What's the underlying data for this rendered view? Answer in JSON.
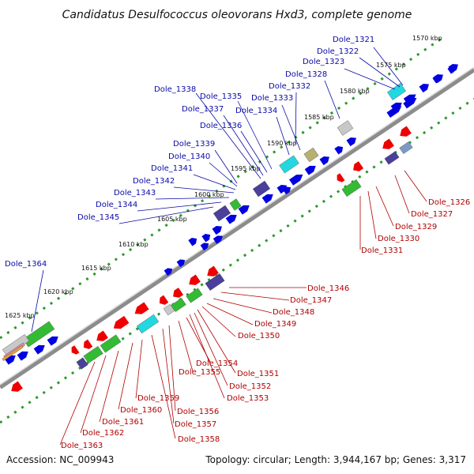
{
  "title": "Candidatus Desulfococcus oleovorans Hxd3, complete genome",
  "accession": "Accession: NC_009943",
  "summary": "Topology: circular; Length: 3,944,167 bp; Genes: 3,317",
  "colors": {
    "backbone": "#8c8c8c",
    "tick_dots": "#2a9a2a",
    "forward_gene": "#0000e0",
    "reverse_gene": "#ee0000",
    "blue_label": "#0a0aa8",
    "red_label": "#b00000",
    "cog_green": "#33bb33",
    "cog_cyan": "#22d8e0",
    "cog_purple": "#4a3f9a",
    "cog_gray": "#c8c8c8",
    "cog_khaki": "#b8b070",
    "cog_steel": "#7a9ac8"
  },
  "kbp_ticks": [
    "1570 kbp",
    "1575 kbp",
    "1580 kbp",
    "1585 kbp",
    "1590 kbp",
    "1595 kbp",
    "1600 kbp",
    "1605 kbp",
    "1610 kbp",
    "1615 kbp",
    "1620 kbp",
    "1625 kbp"
  ],
  "forward_labels": [
    "Dole_1321",
    "Dole_1322",
    "Dole_1323",
    "Dole_1328",
    "Dole_1332",
    "Dole_1333",
    "Dole_1334",
    "Dole_1335",
    "Dole_1336",
    "Dole_1337",
    "Dole_1338",
    "Dole_1339",
    "Dole_1340",
    "Dole_1341",
    "Dole_1342",
    "Dole_1343",
    "Dole_1344",
    "Dole_1345",
    "Dole_1364"
  ],
  "reverse_labels": [
    "Dole_1326",
    "Dole_1327",
    "Dole_1329",
    "Dole_1330",
    "Dole_1331",
    "Dole_1346",
    "Dole_1347",
    "Dole_1348",
    "Dole_1349",
    "Dole_1350",
    "Dole_1351",
    "Dole_1352",
    "Dole_1353",
    "Dole_1354",
    "Dole_1355",
    "Dole_1356",
    "Dole_1357",
    "Dole_1358",
    "Dole_1359",
    "Dole_1360",
    "Dole_1361",
    "Dole_1362",
    "Dole_1363"
  ]
}
